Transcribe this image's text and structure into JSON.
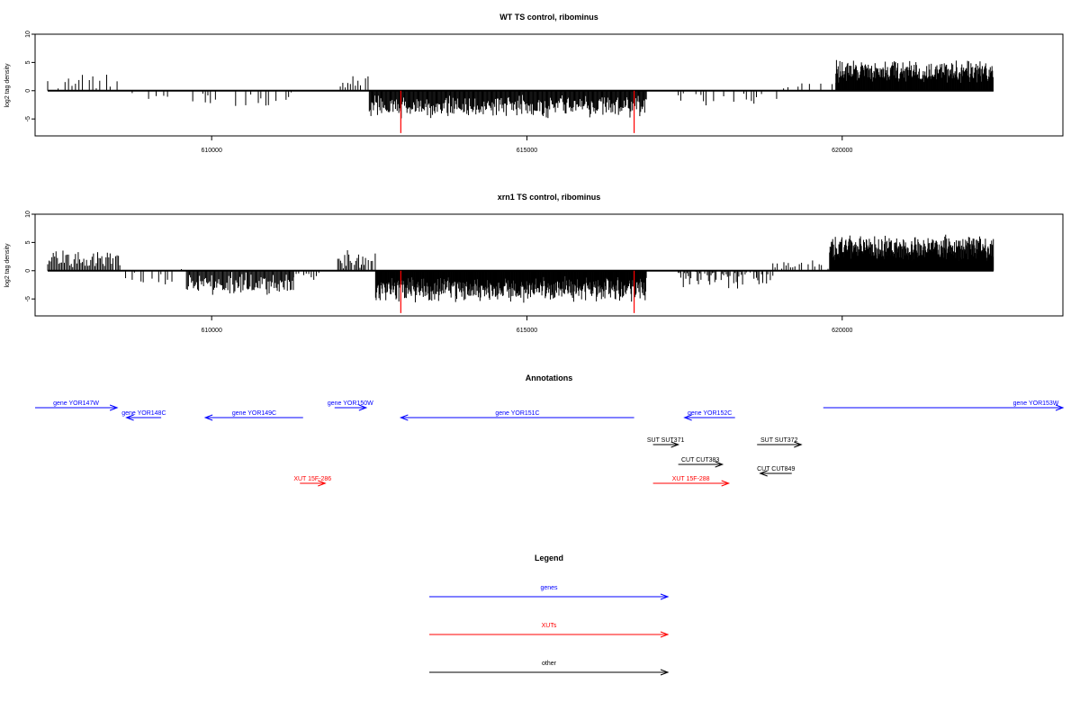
{
  "chart_data": [
    {
      "type": "bar",
      "title": "WT TS control, ribominus",
      "ylabel": "log2 tag density",
      "xlabel": "",
      "xlim": [
        607200,
        623500
      ],
      "ylim": [
        -8,
        10
      ],
      "xticks": [
        {
          "value": 610000,
          "label": "610000"
        },
        {
          "value": 615000,
          "label": "615000"
        },
        {
          "value": 620000,
          "label": "620000"
        }
      ],
      "yticks": [
        {
          "value": -5,
          "label": "-5"
        },
        {
          "value": 0,
          "label": "0"
        },
        {
          "value": 5,
          "label": "5"
        },
        {
          "value": 10,
          "label": "10"
        }
      ],
      "highlight_color": "#ff0000",
      "highlights": [
        {
          "x": 613000,
          "y": -7.5
        },
        {
          "x": 616700,
          "y": -7.5
        }
      ],
      "segments": [
        {
          "from": 607400,
          "to": 608500,
          "mean": 1.6,
          "amp": 1.4,
          "step": 55,
          "density": 0.55
        },
        {
          "from": 608600,
          "to": 609000,
          "mean": -0.2,
          "amp": 0.6,
          "step": 70,
          "density": 0.35
        },
        {
          "from": 609000,
          "to": 609300,
          "mean": -1.3,
          "amp": 0.8,
          "step": 60,
          "density": 0.55
        },
        {
          "from": 609700,
          "to": 611400,
          "mean": -1.6,
          "amp": 1.2,
          "step": 40,
          "density": 0.55
        },
        {
          "from": 612000,
          "to": 612500,
          "mean": 1.6,
          "amp": 1.2,
          "step": 40,
          "density": 0.7
        },
        {
          "from": 612500,
          "to": 616900,
          "mean": -2.8,
          "amp": 1.6,
          "step": 13,
          "density": 1.0
        },
        {
          "from": 617400,
          "to": 619000,
          "mean": -1.2,
          "amp": 1.2,
          "step": 40,
          "density": 0.4
        },
        {
          "from": 619000,
          "to": 619300,
          "mean": 0.4,
          "amp": 0.6,
          "step": 70,
          "density": 0.5
        },
        {
          "from": 619300,
          "to": 619900,
          "mean": 0.9,
          "amp": 0.6,
          "step": 60,
          "density": 0.4
        },
        {
          "from": 619900,
          "to": 622400,
          "mean": 3.4,
          "amp": 1.6,
          "step": 9,
          "density": 1.0
        }
      ]
    },
    {
      "type": "bar",
      "title": "xrn1 TS control, ribominus",
      "ylabel": "log2 tag density",
      "xlabel": "",
      "xlim": [
        607200,
        623500
      ],
      "ylim": [
        -8,
        10
      ],
      "xticks": [
        {
          "value": 610000,
          "label": "610000"
        },
        {
          "value": 615000,
          "label": "615000"
        },
        {
          "value": 620000,
          "label": "620000"
        }
      ],
      "yticks": [
        {
          "value": -5,
          "label": "-5"
        },
        {
          "value": 0,
          "label": "0"
        },
        {
          "value": 5,
          "label": "5"
        },
        {
          "value": 10,
          "label": "10"
        }
      ],
      "highlight_color": "#ff0000",
      "highlights": [
        {
          "x": 613000,
          "y": -7.5
        },
        {
          "x": 616700,
          "y": -7.5
        }
      ],
      "segments": [
        {
          "from": 607400,
          "to": 608550,
          "mean": 2.1,
          "amp": 1.6,
          "step": 22,
          "density": 0.95
        },
        {
          "from": 608600,
          "to": 609400,
          "mean": -1.4,
          "amp": 1.2,
          "step": 35,
          "density": 0.6
        },
        {
          "from": 609400,
          "to": 609600,
          "mean": 1.2,
          "amp": 1.4,
          "step": 40,
          "density": 0.6
        },
        {
          "from": 609600,
          "to": 611300,
          "mean": -2.4,
          "amp": 1.6,
          "step": 16,
          "density": 1.0
        },
        {
          "from": 611300,
          "to": 611700,
          "mean": -0.9,
          "amp": 0.8,
          "step": 40,
          "density": 0.6
        },
        {
          "from": 612000,
          "to": 612600,
          "mean": 2.0,
          "amp": 1.3,
          "step": 22,
          "density": 0.9
        },
        {
          "from": 612600,
          "to": 616900,
          "mean": -3.3,
          "amp": 1.8,
          "step": 9,
          "density": 1.0
        },
        {
          "from": 617400,
          "to": 618900,
          "mean": -1.3,
          "amp": 1.6,
          "step": 20,
          "density": 0.8
        },
        {
          "from": 618900,
          "to": 619800,
          "mean": 1.0,
          "amp": 0.8,
          "step": 35,
          "density": 0.6
        },
        {
          "from": 619800,
          "to": 622400,
          "mean": 4.0,
          "amp": 1.8,
          "step": 7,
          "density": 1.0
        }
      ]
    }
  ],
  "annotations": {
    "title": "Annotations",
    "colors": {
      "genes": "#0000ff",
      "XUTs": "#ff0000",
      "other": "#000000"
    },
    "items": [
      {
        "label": "gene YOR147W",
        "color": "genes",
        "start": 607200,
        "end": 608500,
        "strand": "+",
        "row": 0
      },
      {
        "label": "gene YOR148C",
        "color": "genes",
        "start": 608650,
        "end": 609200,
        "strand": "-",
        "row": 1
      },
      {
        "label": "gene YOR149C",
        "color": "genes",
        "start": 609900,
        "end": 611450,
        "strand": "-",
        "row": 1
      },
      {
        "label": "gene YOR150W",
        "color": "genes",
        "start": 611950,
        "end": 612450,
        "strand": "+",
        "row": 0
      },
      {
        "label": "gene YOR151C",
        "color": "genes",
        "start": 613000,
        "end": 616700,
        "strand": "-",
        "row": 1
      },
      {
        "label": "gene YOR152C",
        "color": "genes",
        "start": 617500,
        "end": 618300,
        "strand": "-",
        "row": 1
      },
      {
        "label": "gene YOR153W",
        "color": "genes",
        "start": 619700,
        "end": 623500,
        "strand": "+",
        "row": 0
      },
      {
        "label": "SUT SUT371",
        "color": "other",
        "start": 617000,
        "end": 617400,
        "strand": "+",
        "row": 3
      },
      {
        "label": "SUT SUT372",
        "color": "other",
        "start": 618650,
        "end": 619350,
        "strand": "+",
        "row": 3
      },
      {
        "label": "CUT CUT383",
        "color": "other",
        "start": 617400,
        "end": 618100,
        "strand": "+",
        "row": 5
      },
      {
        "label": "CUT CUT849",
        "color": "other",
        "start": 618700,
        "end": 619200,
        "strand": "-",
        "row": 6
      },
      {
        "label": "XUT 15F-286",
        "color": "XUTs",
        "start": 611400,
        "end": 611800,
        "strand": "+",
        "row": 7
      },
      {
        "label": "XUT 15F-288",
        "color": "XUTs",
        "start": 617000,
        "end": 618200,
        "strand": "+",
        "row": 7
      }
    ]
  },
  "legend": {
    "title": "Legend",
    "items": [
      {
        "label": "genes",
        "color": "#0000ff"
      },
      {
        "label": "XUTs",
        "color": "#ff0000"
      },
      {
        "label": "other",
        "color": "#000000"
      }
    ]
  }
}
